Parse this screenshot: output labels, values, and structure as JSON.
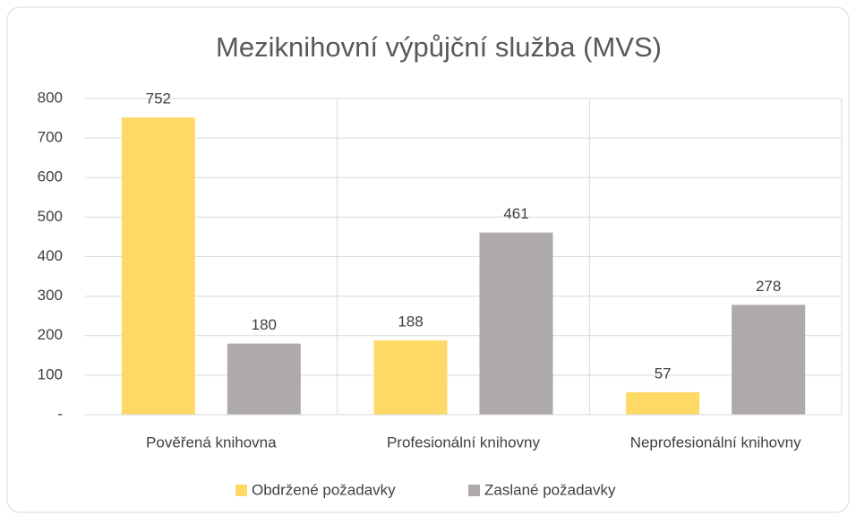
{
  "chart_data": {
    "type": "bar",
    "title": "Meziknihovní výpůjční služba (MVS)",
    "categories": [
      "Pověřená knihovna",
      "Profesionální knihovny",
      "Neprofesionální knihovny"
    ],
    "series": [
      {
        "name": "Obdržené požadavky",
        "color": "#ffd966",
        "values": [
          752,
          188,
          57
        ]
      },
      {
        "name": "Zaslané požadavky",
        "color": "#aeaaaa",
        "values": [
          180,
          461,
          278
        ]
      }
    ],
    "ylim": [
      0,
      800
    ],
    "yticks": [
      {
        "value": 0,
        "label": "-"
      },
      100,
      200,
      300,
      400,
      500,
      600,
      700,
      800
    ],
    "grid": true,
    "legend": "bottom"
  }
}
